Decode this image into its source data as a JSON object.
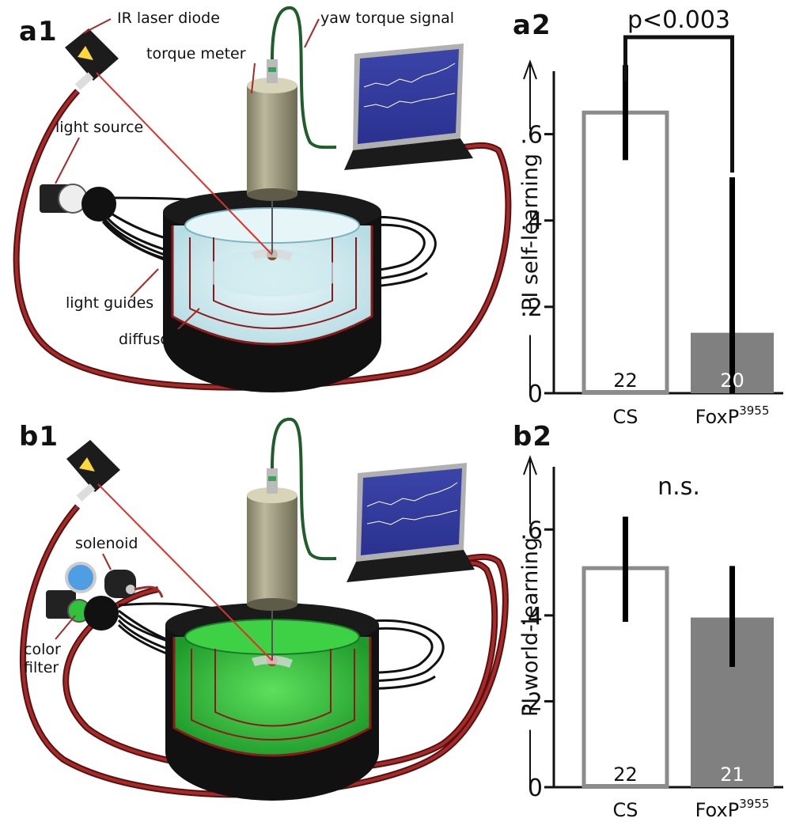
{
  "panels": {
    "a1": "a1",
    "a2": "a2",
    "b1": "b1",
    "b2": "b2"
  },
  "diagram_a": {
    "labels": {
      "laser": "IR laser diode",
      "yaw": "yaw torque signal",
      "torque": "torque meter",
      "light_source": "light source",
      "light_guides": "light guides",
      "diffusor": "diffusor"
    }
  },
  "diagram_b": {
    "labels": {
      "solenoid": "solenoid",
      "color_filter_1": "color",
      "color_filter_2": "filter"
    }
  },
  "colors": {
    "cs_bar_edge": "#8c8c8c",
    "foxp_bar_fill": "#808080",
    "error_bar": "#000000",
    "cable": "#8b1a1a",
    "arena_a": "#d6eef2",
    "arena_b": "#2fc23a"
  },
  "chart_data": [
    {
      "type": "bar",
      "panel": "a2",
      "categories": [
        "CS",
        "FoxP"
      ],
      "category_superscripts": [
        "",
        "3955"
      ],
      "values": [
        0.65,
        0.14
      ],
      "error_high": [
        0.76,
        0.5
      ],
      "error_low": [
        0.54,
        0.0
      ],
      "n": [
        "22",
        "20"
      ],
      "ylabel": "PI self-learning",
      "yticks": [
        "0",
        ".2",
        ".4",
        ".6"
      ],
      "ylim": [
        0,
        0.7
      ],
      "significance": "p<0.003"
    },
    {
      "type": "bar",
      "panel": "b2",
      "categories": [
        "CS",
        "FoxP"
      ],
      "category_superscripts": [
        "",
        "3955"
      ],
      "values": [
        0.51,
        0.395
      ],
      "error_high": [
        0.63,
        0.515
      ],
      "error_low": [
        0.385,
        0.28
      ],
      "n": [
        "22",
        "21"
      ],
      "ylabel": "PI world-learning",
      "yticks": [
        "0",
        ".2",
        ".4",
        ".6"
      ],
      "ylim": [
        0,
        0.7
      ],
      "significance": "n.s."
    }
  ]
}
